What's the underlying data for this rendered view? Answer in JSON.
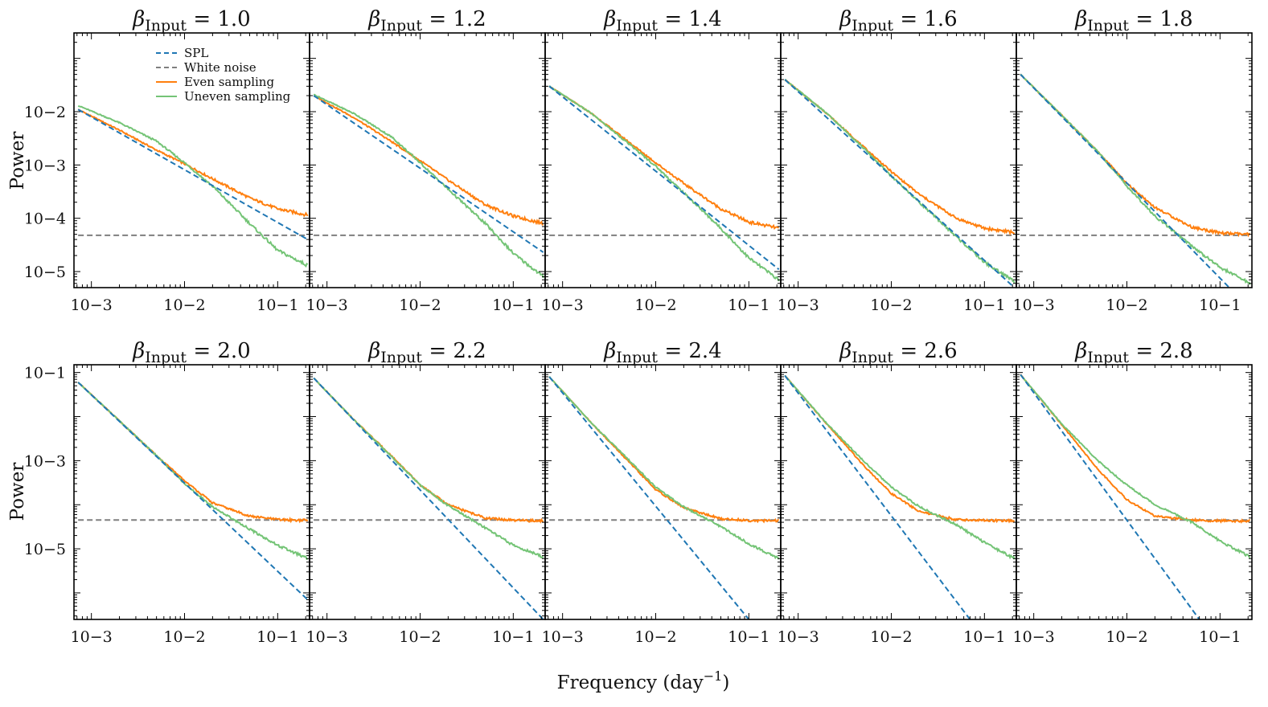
{
  "figure": {
    "xlabel": "Frequency (day",
    "xlabel_exponent": "−1",
    "xlabel_suffix": ")",
    "ylabel": "Power"
  },
  "legend": {
    "entries": [
      {
        "label": "SPL",
        "color": "#1f77b4",
        "style": "dashed"
      },
      {
        "label": "White noise",
        "color": "#7f7f7f",
        "style": "dashed"
      },
      {
        "label": "Even sampling",
        "color": "#ff7f0e",
        "style": "solid"
      },
      {
        "label": "Uneven sampling",
        "color": "#74c476",
        "style": "solid"
      }
    ],
    "placement": "upper-right of first panel"
  },
  "colors": {
    "spl": "#1f77b4",
    "white_noise": "#7f7f7f",
    "even": "#ff7f0e",
    "uneven": "#74c476"
  },
  "chart_data": {
    "type": "line",
    "x_scale": "log",
    "y_scale": "log",
    "xlim": [
      0.00065,
      0.22
    ],
    "x_ticks": [
      0.001,
      0.01,
      0.1
    ],
    "x_tick_labels": [
      "10−3",
      "10−2",
      "10−1"
    ],
    "rows": [
      {
        "ylim": [
          5e-06,
          0.3
        ],
        "y_ticks": [
          1e-05,
          0.0001,
          0.001,
          0.01
        ],
        "y_tick_labels": [
          "10−5",
          "10−4",
          "10−3",
          "10−2"
        ]
      },
      {
        "ylim": [
          2.5e-07,
          0.15
        ],
        "y_ticks": [
          1e-05,
          0.001,
          0.1
        ],
        "y_tick_labels": [
          "10−5",
          "10−3",
          "10−1"
        ]
      }
    ],
    "panels": [
      {
        "title": "β",
        "sub": "Input",
        "value": " = 1.0",
        "row": 0,
        "spl": [
          [
            0.00072,
            0.011
          ],
          [
            0.21,
            4e-05
          ]
        ],
        "white_noise": 4.8e-05,
        "even": [
          [
            0.00072,
            0.011
          ],
          [
            0.002,
            0.0045
          ],
          [
            0.005,
            0.0019
          ],
          [
            0.01,
            0.00105
          ],
          [
            0.02,
            0.00055
          ],
          [
            0.05,
            0.00024
          ],
          [
            0.1,
            0.00015
          ],
          [
            0.21,
            0.000115
          ]
        ],
        "uneven": [
          [
            0.00072,
            0.013
          ],
          [
            0.002,
            0.0062
          ],
          [
            0.005,
            0.0028
          ],
          [
            0.01,
            0.0011
          ],
          [
            0.02,
            0.0004
          ],
          [
            0.05,
            8e-05
          ],
          [
            0.1,
            2.5e-05
          ],
          [
            0.21,
            1.3e-05
          ]
        ]
      },
      {
        "title": "β",
        "sub": "Input",
        "value": " = 1.2",
        "row": 0,
        "spl": [
          [
            0.00072,
            0.02
          ],
          [
            0.21,
            2.3e-05
          ]
        ],
        "white_noise": 4.8e-05,
        "even": [
          [
            0.00072,
            0.02
          ],
          [
            0.002,
            0.0075
          ],
          [
            0.005,
            0.0027
          ],
          [
            0.01,
            0.0012
          ],
          [
            0.02,
            0.00052
          ],
          [
            0.05,
            0.00018
          ],
          [
            0.1,
            0.00011
          ],
          [
            0.21,
            8e-05
          ]
        ],
        "uneven": [
          [
            0.00072,
            0.021
          ],
          [
            0.002,
            0.009
          ],
          [
            0.005,
            0.0033
          ],
          [
            0.01,
            0.0011
          ],
          [
            0.02,
            0.00035
          ],
          [
            0.05,
            8e-05
          ],
          [
            0.1,
            2.2e-05
          ],
          [
            0.21,
            8e-06
          ]
        ]
      },
      {
        "title": "β",
        "sub": "Input",
        "value": " = 1.4",
        "row": 0,
        "spl": [
          [
            0.00072,
            0.03
          ],
          [
            0.21,
            1.1e-05
          ]
        ],
        "white_noise": 4.8e-05,
        "even": [
          [
            0.00072,
            0.03
          ],
          [
            0.002,
            0.0095
          ],
          [
            0.005,
            0.0028
          ],
          [
            0.01,
            0.0011
          ],
          [
            0.02,
            0.00045
          ],
          [
            0.05,
            0.00015
          ],
          [
            0.1,
            8.5e-05
          ],
          [
            0.21,
            6.5e-05
          ]
        ],
        "uneven": [
          [
            0.00072,
            0.03
          ],
          [
            0.002,
            0.0095
          ],
          [
            0.005,
            0.0026
          ],
          [
            0.01,
            0.00095
          ],
          [
            0.02,
            0.0003
          ],
          [
            0.05,
            6.5e-05
          ],
          [
            0.1,
            1.8e-05
          ],
          [
            0.21,
            7e-06
          ]
        ]
      },
      {
        "title": "β",
        "sub": "Input",
        "value": " = 1.6",
        "row": 0,
        "spl": [
          [
            0.00072,
            0.04
          ],
          [
            0.21,
            5e-06
          ]
        ],
        "white_noise": 4.8e-05,
        "even": [
          [
            0.00072,
            0.04
          ],
          [
            0.002,
            0.0095
          ],
          [
            0.005,
            0.0022
          ],
          [
            0.01,
            0.00075
          ],
          [
            0.02,
            0.00028
          ],
          [
            0.05,
            0.0001
          ],
          [
            0.1,
            6.5e-05
          ],
          [
            0.21,
            5.4e-05
          ]
        ],
        "uneven": [
          [
            0.00072,
            0.04
          ],
          [
            0.002,
            0.0095
          ],
          [
            0.005,
            0.0021
          ],
          [
            0.01,
            0.00062
          ],
          [
            0.02,
            0.0002
          ],
          [
            0.05,
            4.5e-05
          ],
          [
            0.1,
            1.5e-05
          ],
          [
            0.21,
            6.5e-06
          ]
        ]
      },
      {
        "title": "β",
        "sub": "Input",
        "value": " = 1.8",
        "row": 0,
        "spl": [
          [
            0.00072,
            0.05
          ],
          [
            0.21,
            2e-06
          ]
        ],
        "white_noise": 4.8e-05,
        "even": [
          [
            0.00072,
            0.05
          ],
          [
            0.002,
            0.0085
          ],
          [
            0.005,
            0.0017
          ],
          [
            0.01,
            0.00045
          ],
          [
            0.02,
            0.00016
          ],
          [
            0.05,
            6.8e-05
          ],
          [
            0.1,
            5.3e-05
          ],
          [
            0.21,
            4.9e-05
          ]
        ],
        "uneven": [
          [
            0.00072,
            0.05
          ],
          [
            0.002,
            0.0085
          ],
          [
            0.005,
            0.0017
          ],
          [
            0.01,
            0.0004
          ],
          [
            0.02,
            0.00011
          ],
          [
            0.05,
            3e-05
          ],
          [
            0.1,
            1.2e-05
          ],
          [
            0.21,
            6e-06
          ]
        ]
      },
      {
        "title": "β",
        "sub": "Input",
        "value": " = 2.0",
        "row": 1,
        "spl": [
          [
            0.00072,
            0.06
          ],
          [
            0.21,
            7e-07
          ]
        ],
        "white_noise": 4.5e-05,
        "even": [
          [
            0.00072,
            0.06
          ],
          [
            0.002,
            0.008
          ],
          [
            0.005,
            0.0013
          ],
          [
            0.01,
            0.00035
          ],
          [
            0.02,
            0.00011
          ],
          [
            0.05,
            5.5e-05
          ],
          [
            0.1,
            4.6e-05
          ],
          [
            0.21,
            4.4e-05
          ]
        ],
        "uneven": [
          [
            0.00072,
            0.06
          ],
          [
            0.002,
            0.008
          ],
          [
            0.005,
            0.0013
          ],
          [
            0.01,
            0.0003
          ],
          [
            0.02,
            9e-05
          ],
          [
            0.05,
            2.8e-05
          ],
          [
            0.1,
            1.2e-05
          ],
          [
            0.21,
            6e-06
          ]
        ]
      },
      {
        "title": "β",
        "sub": "Input",
        "value": " = 2.2",
        "row": 1,
        "spl": [
          [
            0.00072,
            0.075
          ],
          [
            0.21,
            2.5e-07
          ]
        ],
        "white_noise": 4.5e-05,
        "even": [
          [
            0.00072,
            0.075
          ],
          [
            0.002,
            0.008
          ],
          [
            0.005,
            0.00125
          ],
          [
            0.01,
            0.00028
          ],
          [
            0.02,
            0.0001
          ],
          [
            0.05,
            5e-05
          ],
          [
            0.1,
            4.4e-05
          ],
          [
            0.21,
            4.3e-05
          ]
        ],
        "uneven": [
          [
            0.00072,
            0.075
          ],
          [
            0.002,
            0.008
          ],
          [
            0.005,
            0.0012
          ],
          [
            0.01,
            0.00028
          ],
          [
            0.02,
            9.5e-05
          ],
          [
            0.05,
            3e-05
          ],
          [
            0.1,
            1.2e-05
          ],
          [
            0.21,
            6.5e-06
          ]
        ]
      },
      {
        "title": "β",
        "sub": "Input",
        "value": " = 2.4",
        "row": 1,
        "spl": [
          [
            0.00072,
            0.08
          ],
          [
            0.1,
            2.5e-07
          ]
        ],
        "white_noise": 4.5e-05,
        "even": [
          [
            0.00072,
            0.08
          ],
          [
            0.002,
            0.0075
          ],
          [
            0.005,
            0.001
          ],
          [
            0.01,
            0.00022
          ],
          [
            0.02,
            8.5e-05
          ],
          [
            0.05,
            4.8e-05
          ],
          [
            0.1,
            4.4e-05
          ],
          [
            0.21,
            4.3e-05
          ]
        ],
        "uneven": [
          [
            0.00072,
            0.08
          ],
          [
            0.002,
            0.0075
          ],
          [
            0.005,
            0.0011
          ],
          [
            0.01,
            0.00025
          ],
          [
            0.02,
            9e-05
          ],
          [
            0.05,
            3.2e-05
          ],
          [
            0.1,
            1.3e-05
          ],
          [
            0.21,
            6e-06
          ]
        ]
      },
      {
        "title": "β",
        "sub": "Input",
        "value": " = 2.6",
        "row": 1,
        "spl": [
          [
            0.00072,
            0.085
          ],
          [
            0.07,
            2.5e-07
          ]
        ],
        "white_noise": 4.5e-05,
        "even": [
          [
            0.00072,
            0.085
          ],
          [
            0.002,
            0.007
          ],
          [
            0.005,
            0.0008
          ],
          [
            0.01,
            0.00018
          ],
          [
            0.02,
            7e-05
          ],
          [
            0.05,
            4.6e-05
          ],
          [
            0.1,
            4.4e-05
          ],
          [
            0.21,
            4.3e-05
          ]
        ],
        "uneven": [
          [
            0.00072,
            0.085
          ],
          [
            0.002,
            0.0072
          ],
          [
            0.005,
            0.001
          ],
          [
            0.01,
            0.00025
          ],
          [
            0.02,
            9e-05
          ],
          [
            0.05,
            3.5e-05
          ],
          [
            0.1,
            1.4e-05
          ],
          [
            0.21,
            6e-06
          ]
        ]
      },
      {
        "title": "β",
        "sub": "Input",
        "value": " = 2.8",
        "row": 1,
        "spl": [
          [
            0.00072,
            0.09
          ],
          [
            0.06,
            2.5e-07
          ]
        ],
        "white_noise": 4.5e-05,
        "even": [
          [
            0.00072,
            0.09
          ],
          [
            0.002,
            0.0065
          ],
          [
            0.005,
            0.0006
          ],
          [
            0.01,
            0.00013
          ],
          [
            0.02,
            5.5e-05
          ],
          [
            0.05,
            4.5e-05
          ],
          [
            0.1,
            4.3e-05
          ],
          [
            0.21,
            4.3e-05
          ]
        ],
        "uneven": [
          [
            0.00072,
            0.09
          ],
          [
            0.002,
            0.0068
          ],
          [
            0.005,
            0.00095
          ],
          [
            0.01,
            0.00028
          ],
          [
            0.02,
            0.0001
          ],
          [
            0.05,
            4e-05
          ],
          [
            0.1,
            1.5e-05
          ],
          [
            0.21,
            6.5e-06
          ]
        ]
      }
    ]
  }
}
